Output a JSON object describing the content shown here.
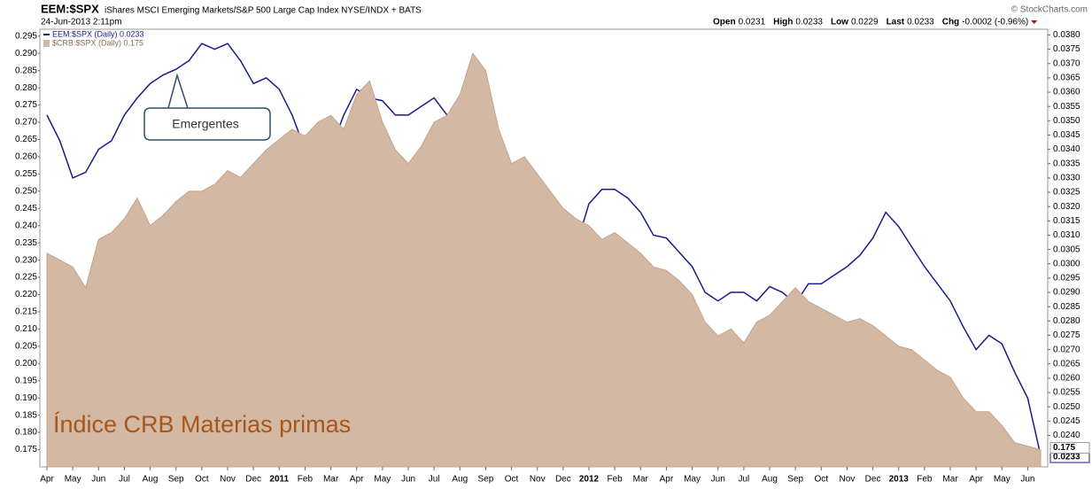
{
  "chart_data": {
    "type": "area-line",
    "symbol": "EEM:$SPX",
    "title": "iShares MSCI Emerging Markets/S&P 500 Large Cap Index  NYSE/INDX + BATS",
    "date": "24-Jun-2013 2:11pm",
    "source": "© StockCharts.com",
    "quote": [
      {
        "label": "Open",
        "value": "0.0231"
      },
      {
        "label": "High",
        "value": "0.0233"
      },
      {
        "label": "Low",
        "value": "0.0229"
      },
      {
        "label": "Last",
        "value": "0.0233"
      },
      {
        "label": "Chg",
        "value": "-0.0002 (-0.96%)"
      }
    ],
    "annotations": [
      "Emergentes",
      "Índice CRB Materias primas"
    ],
    "categories": [
      "Apr",
      null,
      "May",
      null,
      "Jun",
      null,
      "Jul",
      null,
      "Aug",
      null,
      "Sep",
      null,
      "Oct",
      null,
      "Nov",
      null,
      "Dec",
      null,
      "2011",
      null,
      "Feb",
      null,
      "Mar",
      null,
      "Apr",
      null,
      "May",
      null,
      "Jun",
      null,
      "Jul",
      null,
      "Aug",
      null,
      "Sep",
      null,
      "Oct",
      null,
      "Nov",
      null,
      "Dec",
      null,
      "2012",
      null,
      "Feb",
      null,
      "Mar",
      null,
      "Apr",
      null,
      "May",
      null,
      "Jun",
      null,
      "Jul",
      null,
      "Aug",
      null,
      "Sep",
      null,
      "Oct",
      null,
      "Nov",
      null,
      "Dec",
      null,
      "2013",
      null,
      "Feb",
      null,
      "Mar",
      null,
      "Apr",
      null,
      "May",
      null,
      "Jun",
      null
    ],
    "series": [
      {
        "name": "EEM:$SPX (Daily) 0.0233",
        "color": "#1a1a8c",
        "kind": "line",
        "axis": "y2",
        "values": [
          0.0352,
          0.0343,
          0.033,
          0.0332,
          0.034,
          0.0343,
          0.0352,
          0.0358,
          0.0363,
          0.0366,
          0.0368,
          0.0371,
          0.0377,
          0.0375,
          0.0377,
          0.0371,
          0.0363,
          0.0365,
          0.0361,
          0.0352,
          0.034,
          0.0337,
          0.034,
          0.0352,
          0.0361,
          0.0358,
          0.0357,
          0.0352,
          0.0352,
          0.0355,
          0.0358,
          0.0352,
          0.0352,
          0.0348,
          0.0348,
          0.033,
          0.0318,
          0.0321,
          0.0321,
          0.0315,
          0.0309,
          0.0306,
          0.0321,
          0.0326,
          0.0326,
          0.0323,
          0.0318,
          0.031,
          0.0309,
          0.0304,
          0.0299,
          0.029,
          0.0287,
          0.029,
          0.029,
          0.0287,
          0.0292,
          0.029,
          0.0286,
          0.0293,
          0.0293,
          0.0296,
          0.0299,
          0.0303,
          0.0309,
          0.0318,
          0.0313,
          0.0306,
          0.0299,
          0.0293,
          0.0287,
          0.0278,
          0.027,
          0.0275,
          0.0272,
          0.0262,
          0.0253,
          0.0233
        ]
      },
      {
        "name": "$CRB:$SPX (Daily) 0.175",
        "color": "#d3b8a4",
        "kind": "area",
        "axis": "y",
        "values": [
          0.232,
          0.23,
          0.228,
          0.222,
          0.236,
          0.238,
          0.242,
          0.248,
          0.24,
          0.243,
          0.247,
          0.25,
          0.25,
          0.252,
          0.256,
          0.254,
          0.258,
          0.262,
          0.265,
          0.268,
          0.266,
          0.27,
          0.272,
          0.268,
          0.278,
          0.282,
          0.27,
          0.262,
          0.258,
          0.263,
          0.27,
          0.272,
          0.278,
          0.29,
          0.285,
          0.268,
          0.258,
          0.26,
          0.255,
          0.25,
          0.245,
          0.242,
          0.24,
          0.236,
          0.238,
          0.235,
          0.232,
          0.228,
          0.227,
          0.224,
          0.22,
          0.212,
          0.208,
          0.21,
          0.206,
          0.212,
          0.214,
          0.218,
          0.222,
          0.218,
          0.216,
          0.214,
          0.212,
          0.213,
          0.211,
          0.208,
          0.205,
          0.204,
          0.201,
          0.198,
          0.196,
          0.19,
          0.186,
          0.186,
          0.182,
          0.177,
          0.176,
          0.175
        ]
      }
    ],
    "ylim": [
      0.17,
      0.297
    ],
    "yticks": [
      0.175,
      {
        "value": 0.18,
        "label": "0.180"
      },
      0.185,
      {
        "value": 0.19,
        "label": "0.190"
      },
      0.195,
      {
        "value": 0.2,
        "label": "0.200"
      },
      0.205,
      {
        "value": 0.21,
        "label": "0.210"
      },
      0.215,
      {
        "value": 0.22,
        "label": "0.220"
      },
      0.225,
      {
        "value": 0.23,
        "label": "0.230"
      },
      0.235,
      {
        "value": 0.24,
        "label": "0.240"
      },
      0.245,
      {
        "value": 0.25,
        "label": "0.250"
      },
      0.255,
      {
        "value": 0.26,
        "label": "0.260"
      },
      0.265,
      {
        "value": 0.27,
        "label": "0.270"
      },
      0.275,
      {
        "value": 0.28,
        "label": "0.280"
      },
      0.285,
      {
        "value": 0.29,
        "label": "0.290"
      },
      0.295
    ],
    "y2lim": [
      0.0229,
      0.0382
    ],
    "y2ticks": [
      {
        "value": 0.024,
        "label": "0.0240"
      },
      0.0245,
      {
        "value": 0.025,
        "label": "0.0250"
      },
      0.0255,
      {
        "value": 0.026,
        "label": "0.0260"
      },
      0.0265,
      {
        "value": 0.027,
        "label": "0.0270"
      },
      0.0275,
      {
        "value": 0.028,
        "label": "0.0280"
      },
      0.0285,
      {
        "value": 0.029,
        "label": "0.0290"
      },
      0.0295,
      {
        "value": 0.03,
        "label": "0.0300"
      },
      0.0305,
      {
        "value": 0.031,
        "label": "0.0310"
      },
      0.0315,
      {
        "value": 0.032,
        "label": "0.0320"
      },
      0.0325,
      {
        "value": 0.033,
        "label": "0.0330"
      },
      0.0335,
      {
        "value": 0.034,
        "label": "0.0340"
      },
      0.0345,
      {
        "value": 0.035,
        "label": "0.0350"
      },
      0.0355,
      {
        "value": 0.036,
        "label": "0.0360"
      },
      0.0365,
      {
        "value": 0.037,
        "label": "0.0370"
      },
      0.0375,
      {
        "value": 0.038,
        "label": "0.0380"
      }
    ],
    "grid": false
  }
}
